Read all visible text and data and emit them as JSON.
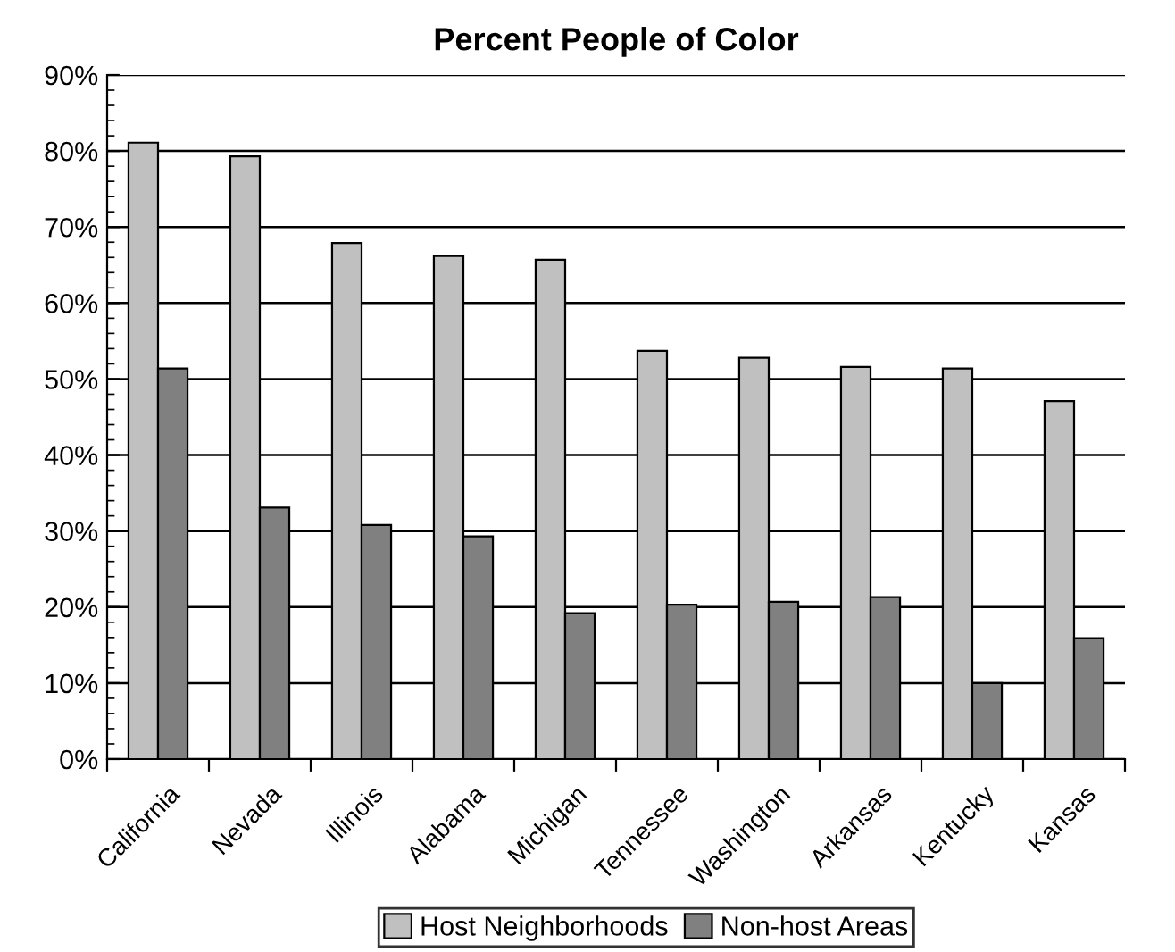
{
  "chart_data": {
    "type": "bar",
    "title": "Percent People of Color",
    "categories": [
      "California",
      "Nevada",
      "Illinois",
      "Alabama",
      "Michigan",
      "Tennessee",
      "Washington",
      "Arkansas",
      "Kentucky",
      "Kansas"
    ],
    "series": [
      {
        "name": "Host Neighborhoods",
        "color": "#c0c0c0",
        "values": [
          81.1,
          79.3,
          67.9,
          66.2,
          65.7,
          53.7,
          52.8,
          51.6,
          51.4,
          47.1
        ]
      },
      {
        "name": "Non-host Areas",
        "color": "#808080",
        "values": [
          51.4,
          33.1,
          30.8,
          29.3,
          19.2,
          20.3,
          20.7,
          21.3,
          10.0,
          15.9
        ]
      }
    ],
    "ylim": [
      0,
      90
    ],
    "yticks": [
      {
        "value": 0,
        "label": "0%"
      },
      {
        "value": 10,
        "label": "10%"
      },
      {
        "value": 20,
        "label": "20%"
      },
      {
        "value": 30,
        "label": "30%"
      },
      {
        "value": 40,
        "label": "40%"
      },
      {
        "value": 50,
        "label": "50%"
      },
      {
        "value": 60,
        "label": "60%"
      },
      {
        "value": 70,
        "label": "70%"
      },
      {
        "value": 80,
        "label": "80%"
      },
      {
        "value": 90,
        "label": "90%"
      }
    ],
    "grid": "y",
    "legend": "bottom"
  }
}
